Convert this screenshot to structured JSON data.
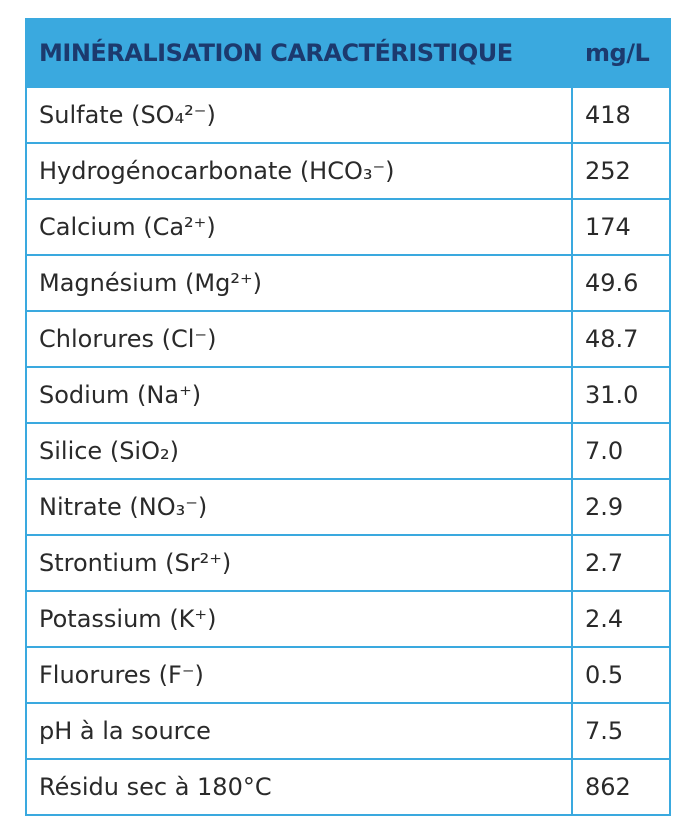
{
  "table": {
    "header": [
      "MINÉRALISATION CARACTÉRISTIQUE",
      "mg/L"
    ],
    "rows": [
      [
        "Sulfate (SO₄²⁻)",
        "418"
      ],
      [
        "Hydrogénocarbonate (HCO₃⁻)",
        "252"
      ],
      [
        "Calcium (Ca²⁺)",
        "174"
      ],
      [
        "Magnésium (Mg²⁺)",
        "49.6"
      ],
      [
        "Chlorures (Cl⁻)",
        "48.7"
      ],
      [
        "Sodium (Na⁺)",
        "31.0"
      ],
      [
        "Silice (SiO₂)",
        "7.0"
      ],
      [
        "Nitrate (NO₃⁻)",
        "2.9"
      ],
      [
        "Strontium (Sr²⁺)",
        "2.7"
      ],
      [
        "Potassium (K⁺)",
        "2.4"
      ],
      [
        "Fluorures (F⁻)",
        "0.5"
      ],
      [
        "pH à la source",
        "7.5"
      ],
      [
        "Résidu sec à 180°C",
        "862"
      ]
    ]
  }
}
